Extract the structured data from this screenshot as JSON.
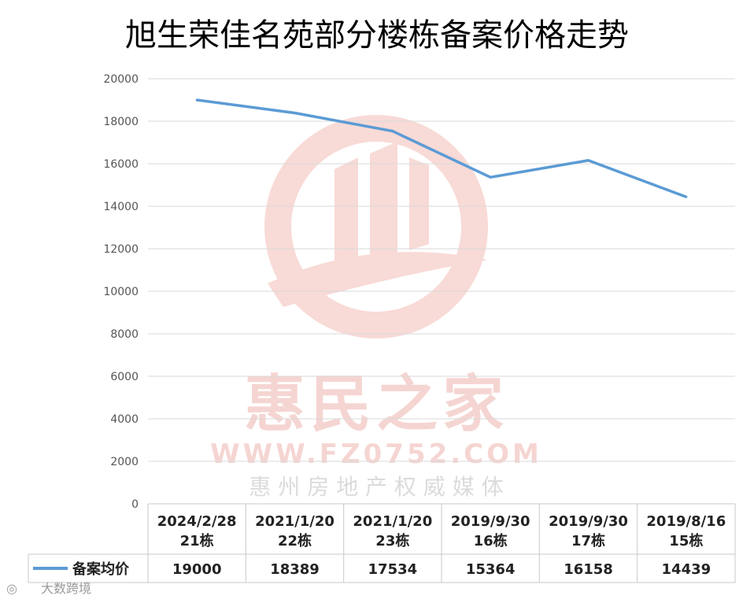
{
  "chart_data": {
    "type": "line",
    "title": "旭生荣佳名苑部分楼栋备案价格走势",
    "categories": [
      [
        "2024/2/28",
        "21栋"
      ],
      [
        "2021/1/20",
        "22栋"
      ],
      [
        "2021/1/20",
        "23栋"
      ],
      [
        "2019/9/30",
        "16栋"
      ],
      [
        "2019/9/30",
        "17栋"
      ],
      [
        "2019/8/16",
        "15栋"
      ]
    ],
    "series": [
      {
        "name": "备案均价",
        "values": [
          19000,
          18389,
          17534,
          15364,
          16158,
          14439
        ],
        "color": "#5b9bd5"
      }
    ],
    "ylim": [
      0,
      20000
    ],
    "yticks": [
      0,
      2000,
      4000,
      6000,
      8000,
      10000,
      12000,
      14000,
      16000,
      18000,
      20000
    ],
    "grid": true,
    "legend": "data-table-left"
  },
  "watermark": {
    "name": "惠民之家",
    "url": "WWW.FZ0752.COM",
    "tagline": "惠 州 房 地 产 权 威 媒 体"
  },
  "footer": {
    "credit": "大数跨境"
  }
}
